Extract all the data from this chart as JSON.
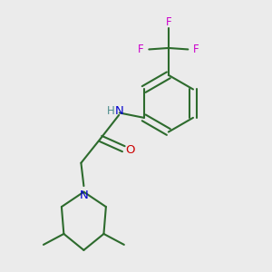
{
  "background_color": "#ebebeb",
  "bond_color": "#2d6b2d",
  "bond_width": 1.5,
  "n_color": "#0000cc",
  "o_color": "#cc0000",
  "f_color": "#cc00cc",
  "h_color": "#4a8a8a",
  "figsize": [
    3.0,
    3.0
  ],
  "dpi": 100,
  "xlim": [
    0,
    1
  ],
  "ylim": [
    0,
    1
  ]
}
